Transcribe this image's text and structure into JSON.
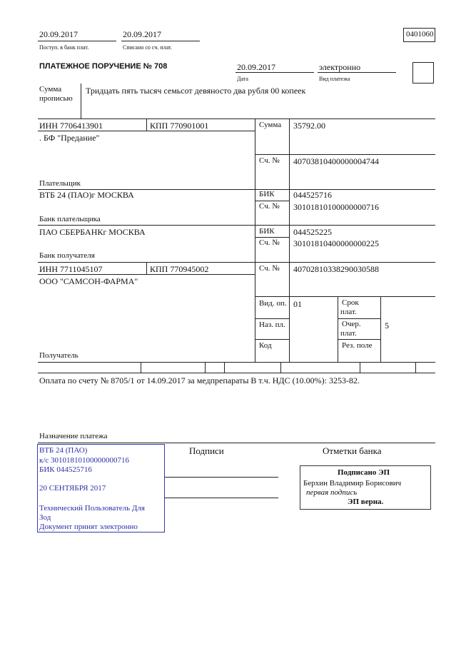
{
  "header": {
    "received_date": "20.09.2017",
    "received_label": "Поступ. в банк плат.",
    "debited_date": "20.09.2017",
    "debited_label": "Списано со сч. плат.",
    "form_code": "0401060",
    "title": "ПЛАТЕЖНОЕ ПОРУЧЕНИЕ № 708",
    "date": "20.09.2017",
    "date_label": "Дата",
    "payment_type": "электронно",
    "payment_type_label": "Вид платежа"
  },
  "amount_words": {
    "label_1": "Сумма",
    "label_2": "прописью",
    "value": "Тридцать пять тысяч семьсот девяносто два рубля 00 копеек"
  },
  "payer": {
    "inn": "ИНН 7706413901",
    "kpp": "КПП 770901001",
    "name": ". БФ \"Предание\"",
    "label": "Плательщик",
    "sum_label": "Сумма",
    "sum": "35792.00",
    "account_label": "Сч. №",
    "account": "40703810400000004744"
  },
  "payer_bank": {
    "name": "ВТБ 24 (ПАО)г МОСКВА",
    "label": "Банк плательщика",
    "bik_label": "БИК",
    "bik": "044525716",
    "account_label": "Сч. №",
    "account": "30101810100000000716"
  },
  "payee_bank": {
    "name": "ПАО СБЕРБАНКг МОСКВА",
    "label": "Банк получателя",
    "bik_label": "БИК",
    "bik": "044525225",
    "account_label": "Сч. №",
    "account": "30101810400000000225"
  },
  "payee": {
    "inn": "ИНН 7711045107",
    "kpp": "КПП 770945002",
    "name": "ООО \"САМСОН-ФАРМА\"",
    "label": "Получатель",
    "account_label": "Сч. №",
    "account": "40702810338290030588",
    "op_type_label": "Вид. оп.",
    "op_type": "01",
    "purpose_code_label": "Наз. пл.",
    "code_label": "Код",
    "term_label_1": "Срок",
    "term_label_2": "плат.",
    "priority_label_1": "Очер.",
    "priority_label_2": "плат.",
    "priority": "5",
    "reserve_label": "Рез. поле"
  },
  "purpose": {
    "text": "Оплата по счету № 8705/1 от 14.09.2017 за медпрепараты В т.ч. НДС (10.00%): 3253-82.",
    "label": "Назначение платежа"
  },
  "signatures": {
    "label": "Подписи",
    "bank_marks_label": "Отметки банка"
  },
  "bank_stamp": {
    "line1": "ВТБ 24 (ПАО)",
    "line2": "к/с 30101810100000000716",
    "line3": "БИК 044525716",
    "date": "20 СЕНТЯБРЯ 2017",
    "user_1": "Технический Пользователь Для",
    "user_2": "Зод",
    "accepted": "Документ принят электронно",
    "color": "#2b2fa8"
  },
  "e_signature": {
    "title": "Подписано ЭП",
    "signer": "Берхин Владимир Борисович",
    "role": "первая подпись",
    "verified": "ЭП верна."
  }
}
